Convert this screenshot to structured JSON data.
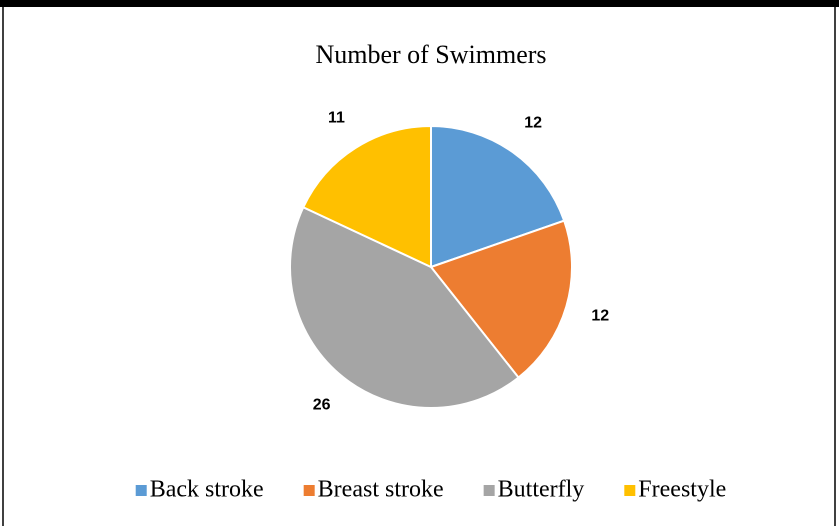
{
  "chart_data": {
    "type": "pie",
    "title": "Number of Swimmers",
    "categories": [
      "Back stroke",
      "Breast stroke",
      "Butterfly",
      "Freestyle"
    ],
    "values": [
      12,
      12,
      26,
      11
    ],
    "colors": [
      "#5b9bd5",
      "#ed7d31",
      "#a5a5a5",
      "#ffc000"
    ],
    "legend": "bottom"
  }
}
